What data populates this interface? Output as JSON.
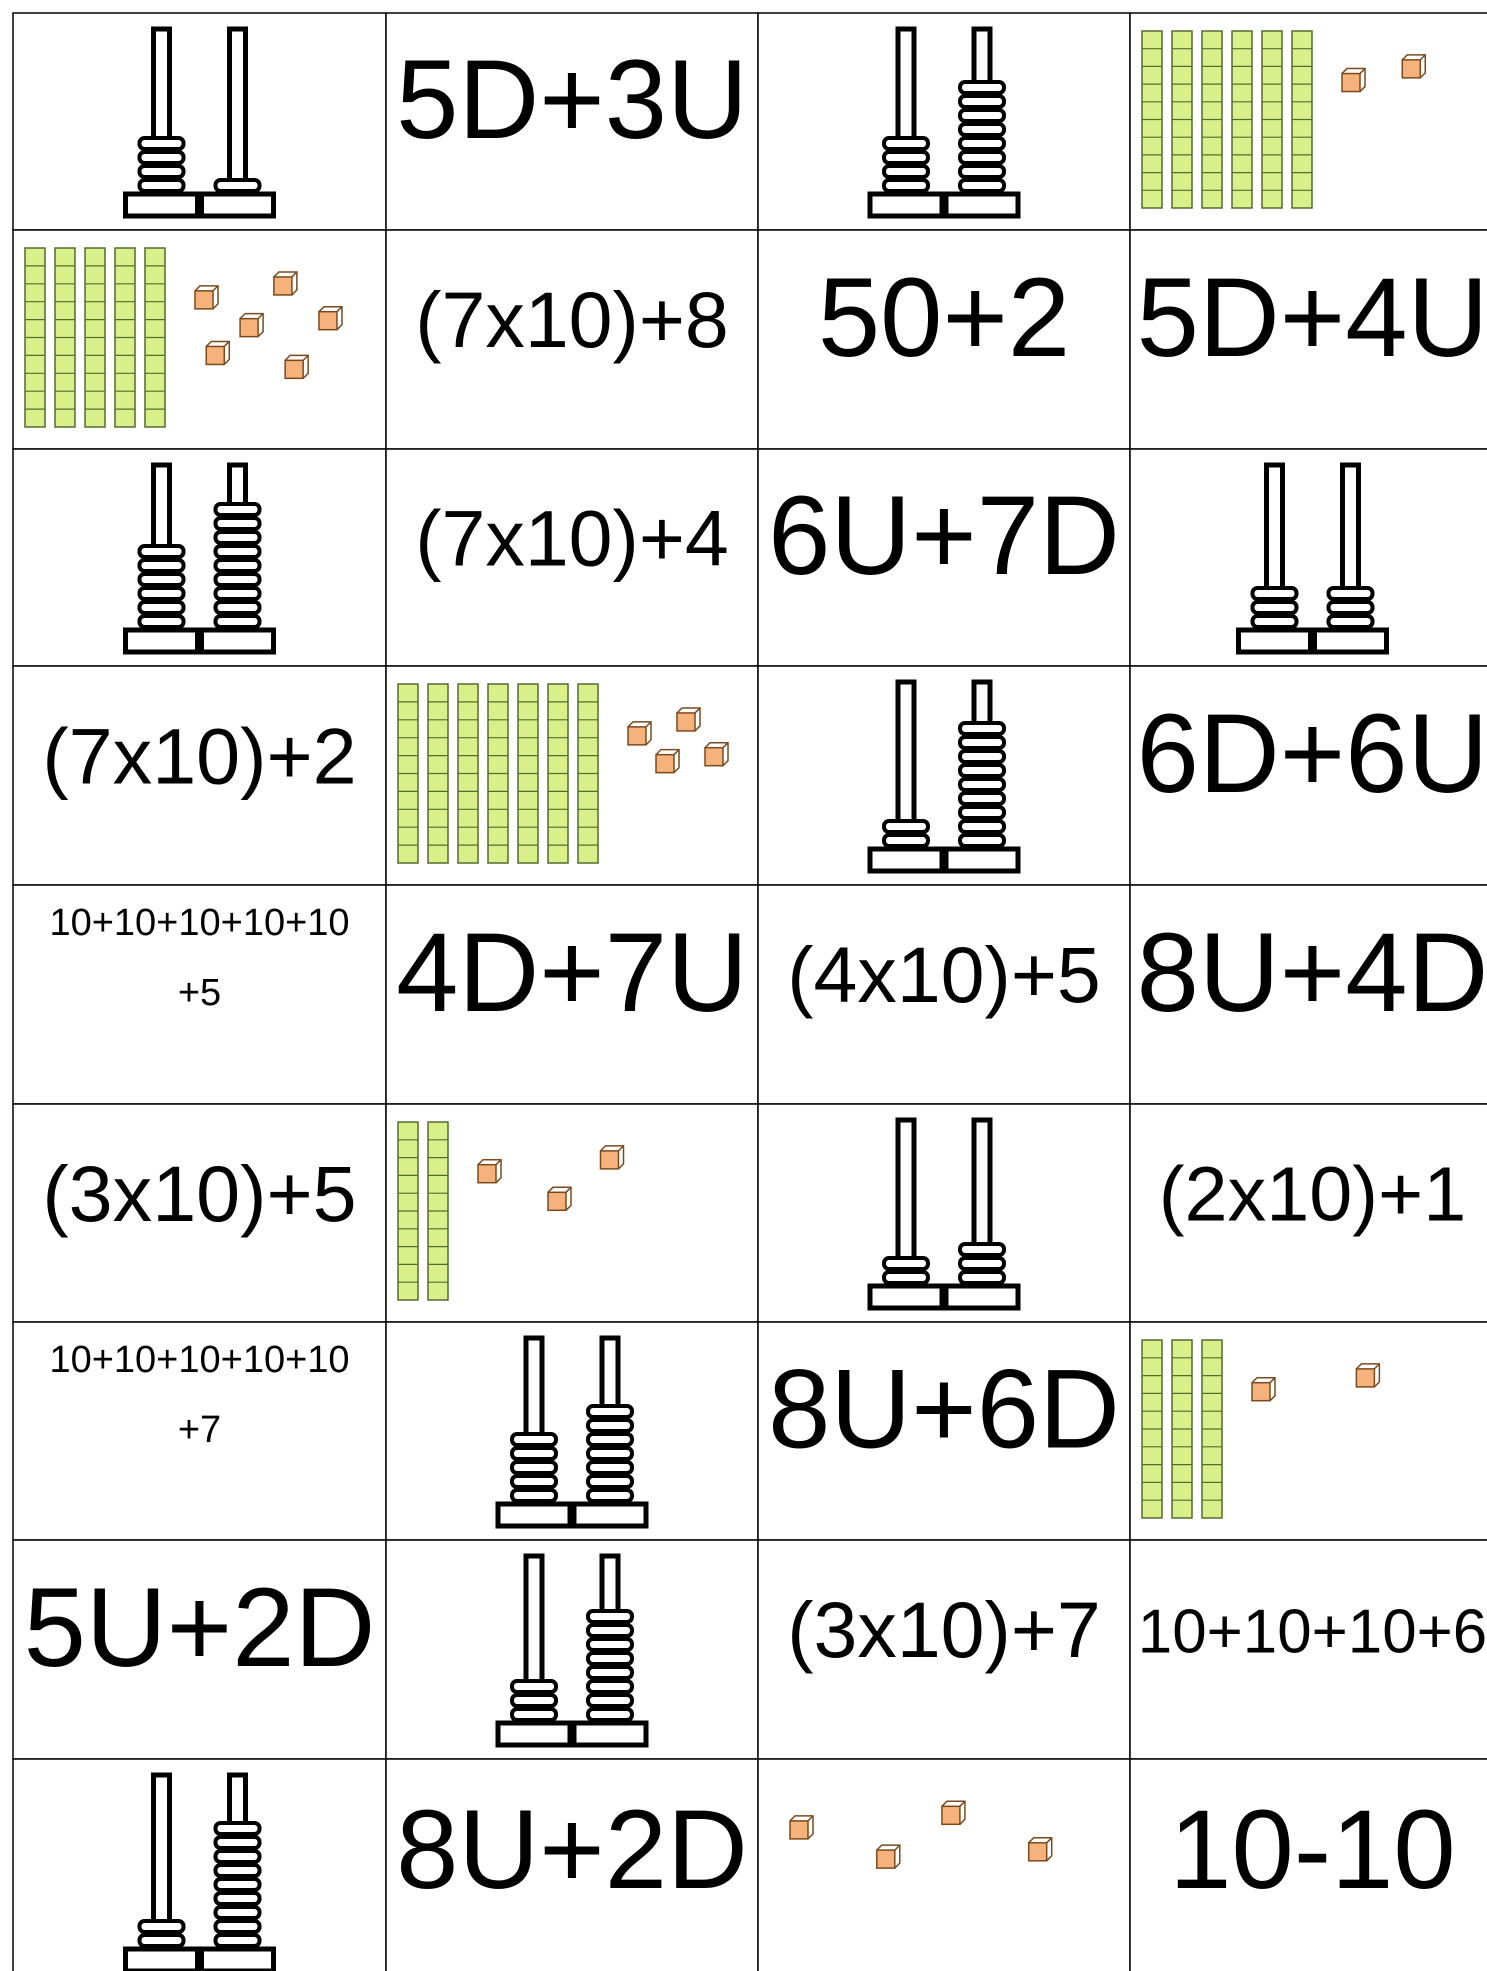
{
  "cells": [
    [
      {
        "abacus": [
          4,
          1
        ]
      },
      {
        "text": "5D+3U"
      },
      {
        "abacus": [
          4,
          8
        ]
      },
      {
        "blocks": [
          6,
          2
        ]
      }
    ],
    [
      {
        "blocks": [
          5,
          6
        ]
      },
      {
        "text": "(7x10)+8"
      },
      {
        "text": "50+2"
      },
      {
        "text": "5D+4U"
      }
    ],
    [
      {
        "abacus": [
          6,
          9
        ]
      },
      {
        "text": "(7x10)+4"
      },
      {
        "text": "6U+7D"
      },
      {
        "abacus": [
          3,
          3
        ]
      }
    ],
    [
      {
        "text": "(7x10)+2"
      },
      {
        "blocks": [
          7,
          4
        ]
      },
      {
        "abacus": [
          2,
          9
        ]
      },
      {
        "text": "6D+6U"
      }
    ],
    [
      {
        "lines": [
          "10+10+10+10+10",
          "+5"
        ]
      },
      {
        "text": "4D+7U"
      },
      {
        "text": "(4x10)+5"
      },
      {
        "text": "8U+4D"
      }
    ],
    [
      {
        "text": "(3x10)+5"
      },
      {
        "blocks": [
          2,
          3
        ]
      },
      {
        "abacus": [
          2,
          3
        ]
      },
      {
        "text": "(2x10)+1"
      }
    ],
    [
      {
        "lines": [
          "10+10+10+10+10",
          "+7"
        ]
      },
      {
        "abacus": [
          5,
          7
        ]
      },
      {
        "text": "8U+6D"
      },
      {
        "blocks": [
          3,
          2
        ]
      }
    ],
    [
      {
        "text": "5U+2D"
      },
      {
        "abacus": [
          3,
          8
        ]
      },
      {
        "text": "(3x10)+7"
      },
      {
        "text": "10+10+10+6"
      }
    ],
    [
      {
        "abacus": [
          2,
          9
        ]
      },
      {
        "text": "8U+2D"
      },
      {
        "blocks": [
          0,
          4
        ]
      },
      {
        "text": "10-10"
      }
    ]
  ]
}
